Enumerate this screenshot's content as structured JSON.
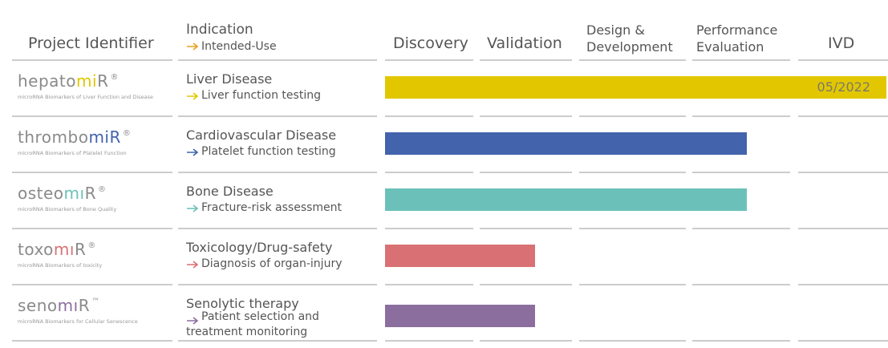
{
  "header": {
    "project": "Project Identifier",
    "indication": "Indication",
    "intended_use": "Intended-Use",
    "stages": [
      "Discovery",
      "Validation",
      "Design & Development",
      "Performance Evaluation",
      "IVD"
    ]
  },
  "rows": [
    {
      "prefix": "hepato",
      "mi": "mi",
      "suffix": "R",
      "mark": "®",
      "subtitle": "microRNA Biomarkers of Liver Function and Disease",
      "indication": "Liver Disease",
      "use": "Liver function testing",
      "color": "#e2c700",
      "stage": 5,
      "bar_label": "05/2022"
    },
    {
      "prefix": "thrombo",
      "mi": "mi",
      "suffix": "R",
      "mark": "®",
      "subtitle": "microRNA Biomarkers of Platelet Function",
      "indication": "Cardiovascular Disease",
      "use": "Platelet function testing",
      "color": "#4363ad",
      "stage": 4
    },
    {
      "prefix": "osteo",
      "mi": "mı",
      "suffix": "R",
      "mark": "®",
      "subtitle": "microRNA Biomarkers of Bone Quality",
      "indication": "Bone Disease",
      "use": "Fracture-risk assessment",
      "color": "#6bc1b9",
      "stage": 4
    },
    {
      "prefix": "toxo",
      "mi": "mı",
      "suffix": "R",
      "mark": "®",
      "subtitle": "microRNA Biomarkers of toxicity",
      "indication": "Toxicology/Drug-safety",
      "use": "Diagnosis of organ-injury",
      "color": "#d97174",
      "stage": 2
    },
    {
      "prefix": "seno",
      "mi": "mı",
      "suffix": "R",
      "mark": "™",
      "subtitle": "microRNA Biomarkers for Cellular Senescence",
      "indication": "Senolytic therapy",
      "use": "Patient selection and treatment monitoring",
      "color": "#8c6e9e",
      "stage": 2
    }
  ]
}
